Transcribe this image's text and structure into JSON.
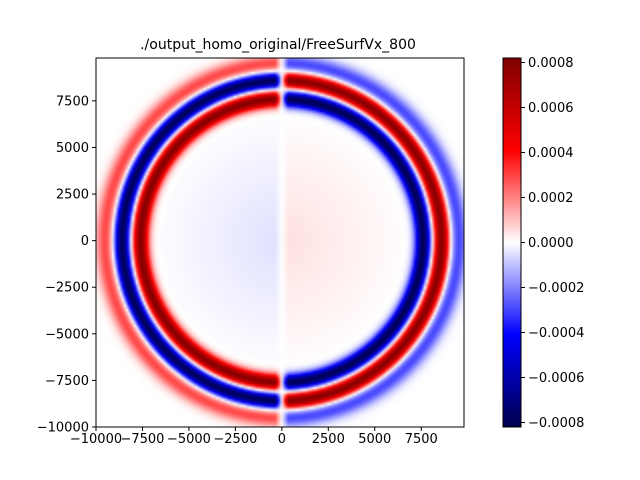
{
  "chart_data": {
    "type": "heatmap",
    "title": "./output_homo_original/FreeSurfVx_800",
    "xlabel": "",
    "ylabel": "",
    "xlim": [
      -10000,
      9800
    ],
    "ylim": [
      -10000,
      9800
    ],
    "x_ticks": [
      -10000,
      -7500,
      -5000,
      -2500,
      0,
      2500,
      5000,
      7500
    ],
    "x_tick_labels": [
      "−10000",
      "−7500",
      "−5000",
      "−2500",
      "0",
      "2500",
      "5000",
      "7500"
    ],
    "y_ticks": [
      -10000,
      -7500,
      -5000,
      -2500,
      0,
      2500,
      5000,
      7500
    ],
    "y_tick_labels": [
      "−10000",
      "−7500",
      "−5000",
      "−2500",
      "0",
      "2500",
      "5000",
      "7500"
    ],
    "colormap": "seismic",
    "colorbar": {
      "vmin": -0.00082,
      "vmax": 0.00082,
      "ticks": [
        0.0008,
        0.0006,
        0.0004,
        0.0002,
        0.0,
        -0.0002,
        -0.0004,
        -0.0006,
        -0.0008
      ],
      "tick_labels": [
        "0.0008",
        "0.0006",
        "0.0004",
        "0.0002",
        "0.0000",
        "−0.0002",
        "−0.0004",
        "−0.0006",
        "−0.0008"
      ]
    },
    "field": {
      "pattern": "concentric wavefront rings, antisymmetric in x (sign flips across x = 0)",
      "rings": [
        {
          "radius": 7600,
          "value_right": -0.0008,
          "value_left": 0.0008
        },
        {
          "radius": 8600,
          "value_right": 0.0008,
          "value_left": -0.0008
        },
        {
          "radius": 9500,
          "value_right": -0.0003,
          "value_left": 0.0003
        }
      ],
      "interior_value_right": 5e-05,
      "interior_value_left": -5e-05
    }
  }
}
